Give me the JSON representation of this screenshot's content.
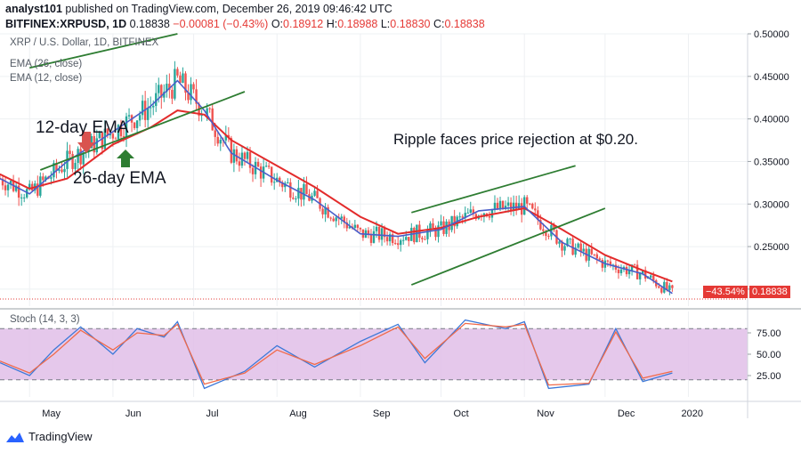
{
  "header": {
    "publisher": "analyst101",
    "published_text": "published on TradingView.com, December 26, 2019 09:46:42 UTC",
    "symbol": "BITFINEX:XRPUSD, 1D",
    "price": "0.18838",
    "change": "−0.00081 (−0.43%)",
    "ohlc": {
      "o_label": "O:",
      "o": "0.18912",
      "h_label": "H:",
      "h": "0.18988",
      "l_label": "L:",
      "l": "0.18830",
      "c_label": "C:",
      "c": "0.18838"
    }
  },
  "legend": {
    "title": "XRP / U.S. Dollar, 1D, BITFINEX",
    "ema26": "EMA (26, close)",
    "ema12": "EMA (12, close)",
    "stoch": "Stoch (14, 3, 3)"
  },
  "annotations": {
    "ema12_label": "12-day EMA",
    "ema26_label": "26-day EMA",
    "comment": "Ripple faces price rejection at $0.20."
  },
  "price_badges": {
    "change_pct": "−43.54%",
    "last_price": "0.18838"
  },
  "footer": {
    "brand": "TradingView"
  },
  "colors": {
    "up": "#26a69a",
    "down": "#ef5350",
    "ema26": "#e32b2b",
    "ema12": "#4a5ec9",
    "trendline": "#2e7d32",
    "stoch_k": "#3c78d8",
    "stoch_d": "#f06a4a",
    "stoch_band": "#e1bee7"
  },
  "chart_data": [
    {
      "type": "candlestick",
      "title": "XRP / U.S. Dollar, 1D, BITFINEX",
      "x_tick_labels": [
        "May",
        "Jun",
        "Jul",
        "Aug",
        "Sep",
        "Oct",
        "Nov",
        "Dec",
        "2020"
      ],
      "y_tick_labels": [
        "0.50000",
        "0.45000",
        "0.40000",
        "0.35000",
        "0.30000",
        "0.25000",
        "0.20000"
      ],
      "ylim": [
        0.18,
        0.5
      ],
      "last_price": 0.18838,
      "series": [
        {
          "name": "EMA (26, close)",
          "points": [
            [
              "2019-04-20",
              0.335
            ],
            [
              "2019-05-01",
              0.318
            ],
            [
              "2019-05-15",
              0.33
            ],
            [
              "2019-06-01",
              0.37
            ],
            [
              "2019-06-15",
              0.39
            ],
            [
              "2019-06-25",
              0.41
            ],
            [
              "2019-07-05",
              0.405
            ],
            [
              "2019-07-15",
              0.375
            ],
            [
              "2019-08-01",
              0.345
            ],
            [
              "2019-08-15",
              0.32
            ],
            [
              "2019-09-01",
              0.285
            ],
            [
              "2019-09-15",
              0.265
            ],
            [
              "2019-10-01",
              0.272
            ],
            [
              "2019-10-15",
              0.285
            ],
            [
              "2019-11-01",
              0.295
            ],
            [
              "2019-11-15",
              0.27
            ],
            [
              "2019-12-01",
              0.24
            ],
            [
              "2019-12-15",
              0.222
            ],
            [
              "2019-12-26",
              0.209
            ]
          ]
        },
        {
          "name": "EMA (12, close)",
          "points": [
            [
              "2019-04-20",
              0.33
            ],
            [
              "2019-05-01",
              0.312
            ],
            [
              "2019-05-15",
              0.35
            ],
            [
              "2019-06-01",
              0.385
            ],
            [
              "2019-06-15",
              0.415
            ],
            [
              "2019-06-25",
              0.445
            ],
            [
              "2019-07-05",
              0.41
            ],
            [
              "2019-07-15",
              0.36
            ],
            [
              "2019-08-01",
              0.328
            ],
            [
              "2019-08-15",
              0.305
            ],
            [
              "2019-09-01",
              0.265
            ],
            [
              "2019-09-15",
              0.262
            ],
            [
              "2019-10-01",
              0.27
            ],
            [
              "2019-10-15",
              0.292
            ],
            [
              "2019-11-01",
              0.297
            ],
            [
              "2019-11-15",
              0.255
            ],
            [
              "2019-12-01",
              0.23
            ],
            [
              "2019-12-15",
              0.218
            ],
            [
              "2019-12-26",
              0.195
            ]
          ]
        }
      ],
      "trendlines": [
        {
          "from": [
            "2019-05-01",
            0.46
          ],
          "to": [
            "2019-06-25",
            0.5
          ]
        },
        {
          "from": [
            "2019-05-05",
            0.34
          ],
          "to": [
            "2019-07-20",
            0.432
          ]
        },
        {
          "from": [
            "2019-09-20",
            0.29
          ],
          "to": [
            "2019-11-20",
            0.345
          ]
        },
        {
          "from": [
            "2019-09-20",
            0.205
          ],
          "to": [
            "2019-12-01",
            0.295
          ]
        }
      ]
    },
    {
      "type": "line",
      "title": "Stoch (14, 3, 3)",
      "y_tick_labels": [
        "75.00",
        "50.00",
        "25.00"
      ],
      "ylim": [
        0,
        100
      ],
      "band": [
        20,
        80
      ],
      "series": [
        {
          "name": "%K",
          "points": [
            [
              "2019-04-20",
              40
            ],
            [
              "2019-05-01",
              25
            ],
            [
              "2019-05-10",
              55
            ],
            [
              "2019-05-20",
              82
            ],
            [
              "2019-06-01",
              50
            ],
            [
              "2019-06-10",
              80
            ],
            [
              "2019-06-20",
              70
            ],
            [
              "2019-06-25",
              88
            ],
            [
              "2019-07-05",
              10
            ],
            [
              "2019-07-20",
              30
            ],
            [
              "2019-08-01",
              60
            ],
            [
              "2019-08-15",
              35
            ],
            [
              "2019-09-01",
              65
            ],
            [
              "2019-09-15",
              85
            ],
            [
              "2019-09-25",
              40
            ],
            [
              "2019-10-10",
              90
            ],
            [
              "2019-10-25",
              80
            ],
            [
              "2019-11-01",
              88
            ],
            [
              "2019-11-10",
              10
            ],
            [
              "2019-11-25",
              15
            ],
            [
              "2019-12-05",
              80
            ],
            [
              "2019-12-15",
              18
            ],
            [
              "2019-12-26",
              28
            ]
          ]
        },
        {
          "name": "%D",
          "points": [
            [
              "2019-04-20",
              42
            ],
            [
              "2019-05-01",
              28
            ],
            [
              "2019-05-10",
              50
            ],
            [
              "2019-05-20",
              78
            ],
            [
              "2019-06-01",
              55
            ],
            [
              "2019-06-10",
              75
            ],
            [
              "2019-06-20",
              72
            ],
            [
              "2019-06-25",
              85
            ],
            [
              "2019-07-05",
              15
            ],
            [
              "2019-07-20",
              28
            ],
            [
              "2019-08-01",
              55
            ],
            [
              "2019-08-15",
              38
            ],
            [
              "2019-09-01",
              60
            ],
            [
              "2019-09-15",
              82
            ],
            [
              "2019-09-25",
              45
            ],
            [
              "2019-10-10",
              86
            ],
            [
              "2019-10-25",
              82
            ],
            [
              "2019-11-01",
              85
            ],
            [
              "2019-11-10",
              14
            ],
            [
              "2019-11-25",
              16
            ],
            [
              "2019-12-05",
              76
            ],
            [
              "2019-12-15",
              22
            ],
            [
              "2019-12-26",
              30
            ]
          ]
        }
      ]
    }
  ]
}
